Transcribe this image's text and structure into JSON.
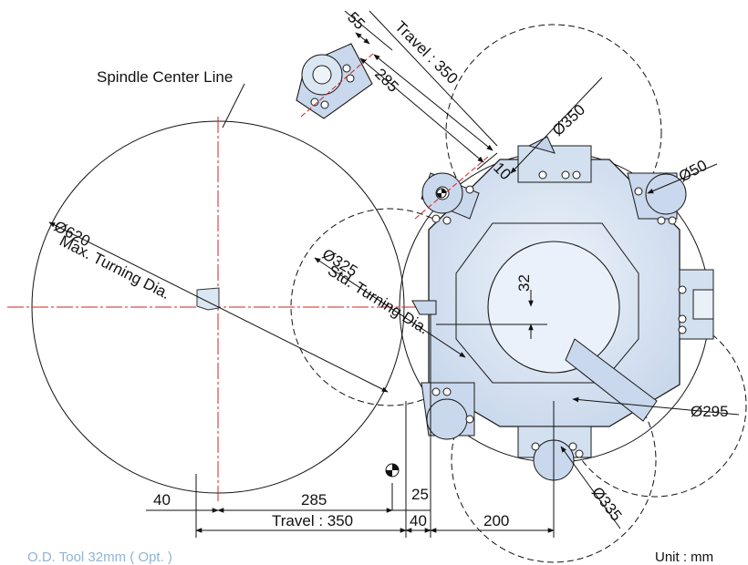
{
  "labels": {
    "spindle_center_line": "Spindle Center Line",
    "max_dia": "Ø620",
    "max_dia_desc": "Max. Turning Dia.",
    "std_dia": "Ø325",
    "std_dia_desc": "Std. Turning Dia.",
    "d350": "Ø350",
    "d50": "Ø50",
    "d295": "Ø295",
    "d335": "Ø335",
    "offset_32": "32",
    "gap_10": "10",
    "top_55": "55",
    "top_285": "285",
    "top_travel": "Travel : 350",
    "bottom_40_left": "40",
    "bottom_285": "285",
    "bottom_25": "25",
    "bottom_travel": "Travel : 350",
    "bottom_40_right": "40",
    "bottom_200": "200"
  },
  "footer": {
    "caption": "O.D. Tool 32mm  ( Opt. )",
    "unit": "Unit : mm"
  },
  "colors": {
    "turret_fill": "#dbe6f3",
    "turret_stroke": "#1a1a1a",
    "centerline": "#d62020",
    "caption_text": "#8fb3d6"
  }
}
